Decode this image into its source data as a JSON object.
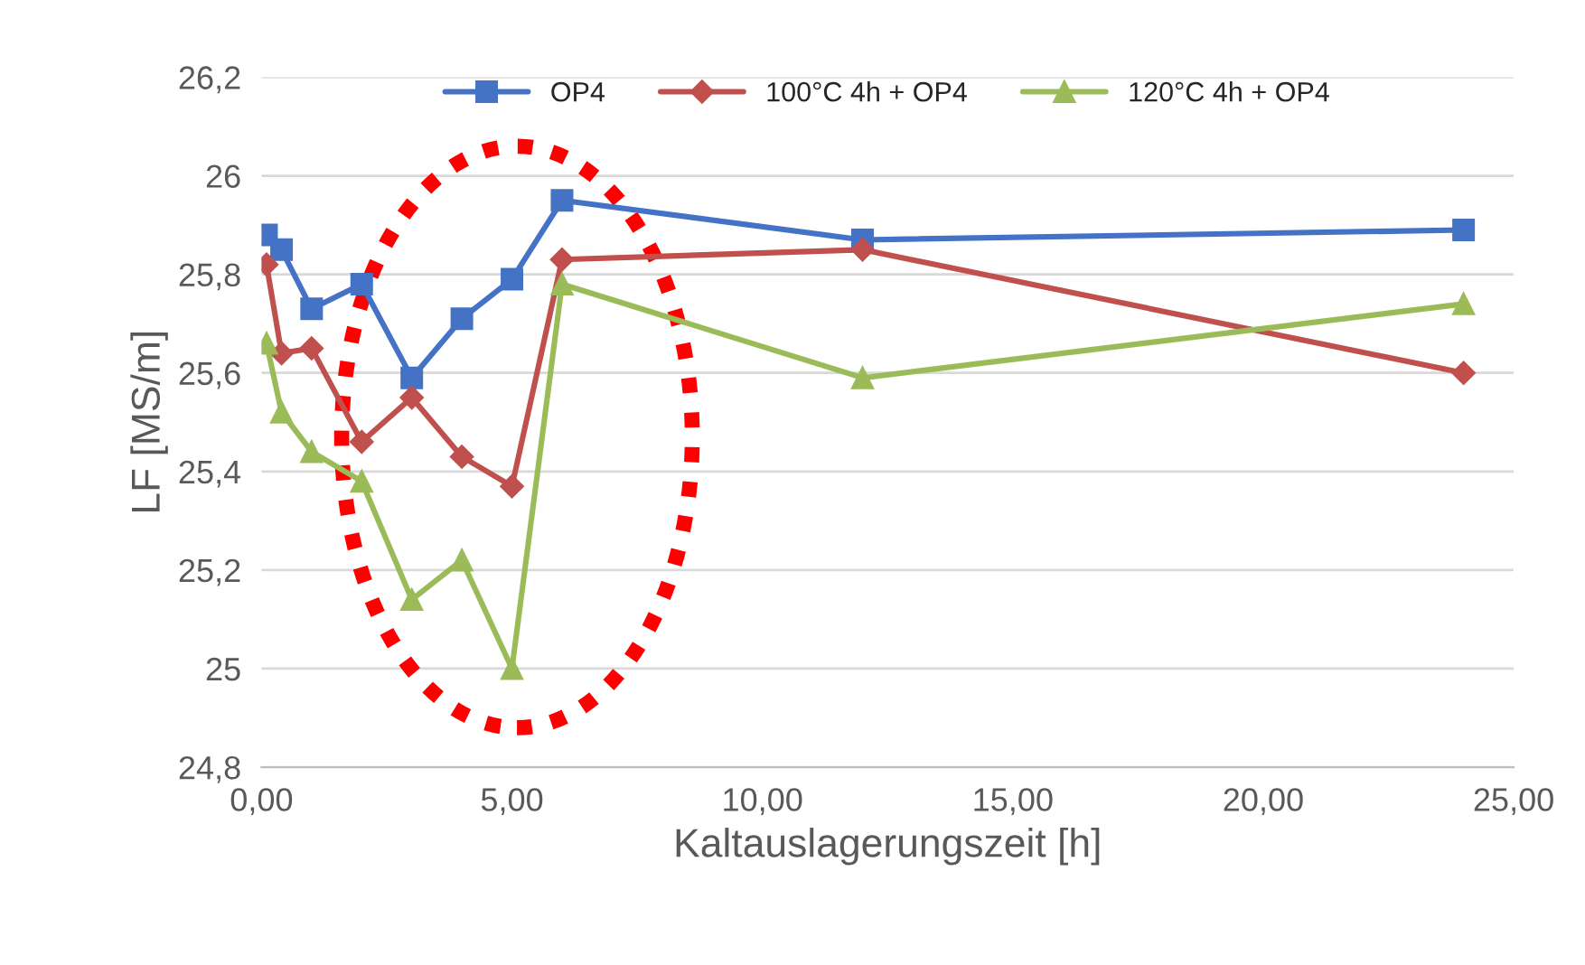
{
  "chart_data": {
    "type": "line",
    "xlabel": "Kaltauslagerungszeit [h]",
    "ylabel": "LF [MS/m]",
    "xlim": [
      0,
      25
    ],
    "xticks": [
      {
        "value": 0,
        "label": "0,00"
      },
      {
        "value": 5,
        "label": "5,00"
      },
      {
        "value": 10,
        "label": "10,00"
      },
      {
        "value": 15,
        "label": "15,00"
      },
      {
        "value": 20,
        "label": "20,00"
      },
      {
        "value": 25,
        "label": "25,00"
      }
    ],
    "ylim": [
      24.8,
      26.2
    ],
    "yticks": [
      {
        "value": 24.8,
        "label": "24,8"
      },
      {
        "value": 25,
        "label": "25"
      },
      {
        "value": 25.2,
        "label": "25,2"
      },
      {
        "value": 25.4,
        "label": "25,4"
      },
      {
        "value": 25.6,
        "label": "25,6"
      },
      {
        "value": 25.8,
        "label": "25,8"
      },
      {
        "value": 26,
        "label": "26"
      },
      {
        "value": 26.2,
        "label": "26,2"
      }
    ],
    "grid": "y",
    "legend": "top",
    "x": [
      0.1,
      0.4,
      1,
      2,
      3,
      4,
      5,
      6,
      12,
      24
    ],
    "series": [
      {
        "name": "OP4",
        "color": "#4472c4",
        "marker": "square",
        "values": [
          25.88,
          25.85,
          25.73,
          25.78,
          25.59,
          25.71,
          25.79,
          25.95,
          25.87,
          25.89
        ]
      },
      {
        "name": "100°C 4h + OP4",
        "color": "#c0504d",
        "marker": "diamond",
        "values": [
          25.82,
          25.64,
          25.65,
          25.46,
          25.55,
          25.43,
          25.37,
          25.83,
          25.85,
          25.6
        ]
      },
      {
        "name": "120°C 4h + OP4",
        "color": "#9bbb59",
        "marker": "triangle",
        "values": [
          25.66,
          25.52,
          25.44,
          25.38,
          25.14,
          25.22,
          25.0,
          25.78,
          25.59,
          25.74
        ]
      }
    ]
  }
}
